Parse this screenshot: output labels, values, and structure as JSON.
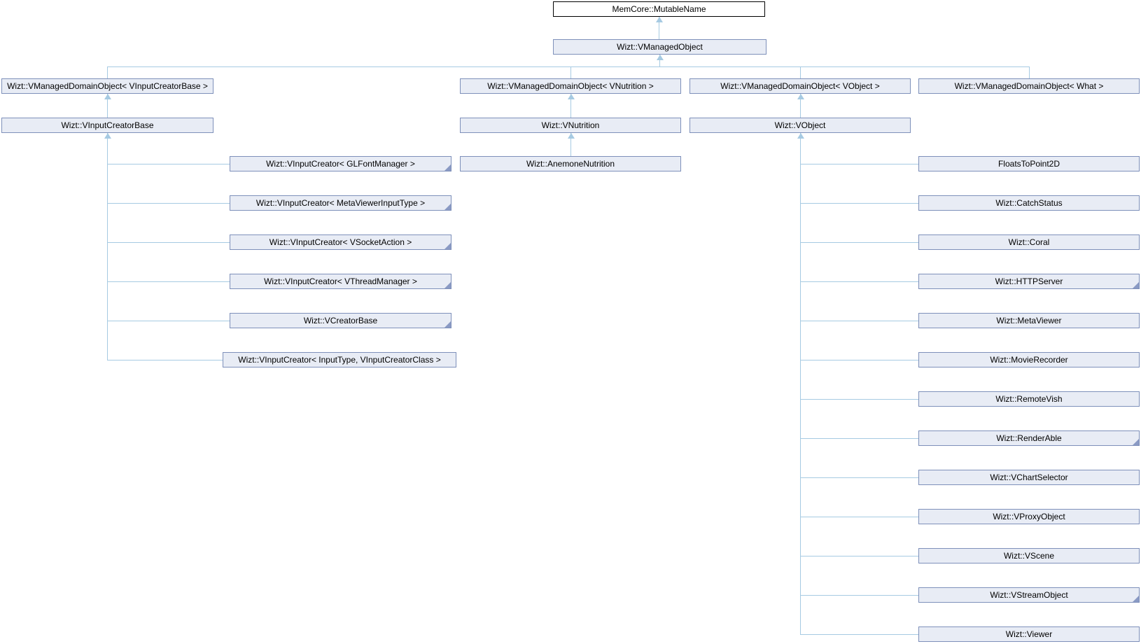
{
  "diagram": {
    "type": "class-inheritance-diagram",
    "colors": {
      "node_fill": "#E8ECF5",
      "node_border": "#7E90BA",
      "external_node_fill": "#FFFFFF",
      "external_node_border": "#000000",
      "connector": "#A6CAE2",
      "fold_marker": "#8A9AC4",
      "text": "#000000"
    },
    "fold_marker_meaning": "box has additional derived classes not shown",
    "nodes": [
      {
        "id": "memcore-mutablename",
        "label": "MemCore::MutableName",
        "variant": "external",
        "fold": false
      },
      {
        "id": "vmanagedobject",
        "label": "Wizt::VManagedObject",
        "variant": "class",
        "fold": false
      },
      {
        "id": "vmdo-vinputcreatorbase",
        "label": "Wizt::VManagedDomainObject< VInputCreatorBase >",
        "variant": "class",
        "fold": false
      },
      {
        "id": "vmdo-vnutrition",
        "label": "Wizt::VManagedDomainObject< VNutrition >",
        "variant": "class",
        "fold": false
      },
      {
        "id": "vmdo-vobject",
        "label": "Wizt::VManagedDomainObject< VObject >",
        "variant": "class",
        "fold": false
      },
      {
        "id": "vmdo-what",
        "label": "Wizt::VManagedDomainObject< What >",
        "variant": "class",
        "fold": false
      },
      {
        "id": "vinputcreatorbase",
        "label": "Wizt::VInputCreatorBase",
        "variant": "class",
        "fold": false
      },
      {
        "id": "vnutrition",
        "label": "Wizt::VNutrition",
        "variant": "class",
        "fold": false
      },
      {
        "id": "vobject",
        "label": "Wizt::VObject",
        "variant": "class",
        "fold": false
      },
      {
        "id": "vic-glfontmanager",
        "label": "Wizt::VInputCreator< GLFontManager >",
        "variant": "class",
        "fold": true
      },
      {
        "id": "vic-metaviewerinputtype",
        "label": "Wizt::VInputCreator< MetaViewerInputType >",
        "variant": "class",
        "fold": true
      },
      {
        "id": "vic-vsocketaction",
        "label": "Wizt::VInputCreator< VSocketAction >",
        "variant": "class",
        "fold": true
      },
      {
        "id": "vic-vthreadmanager",
        "label": "Wizt::VInputCreator< VThreadManager >",
        "variant": "class",
        "fold": true
      },
      {
        "id": "vcreatorbase",
        "label": "Wizt::VCreatorBase",
        "variant": "class",
        "fold": true
      },
      {
        "id": "vic-inputtype-vinputcreatorclass",
        "label": "Wizt::VInputCreator< InputType, VInputCreatorClass >",
        "variant": "class",
        "fold": false
      },
      {
        "id": "anemonenutrition",
        "label": "Wizt::AnemoneNutrition",
        "variant": "class",
        "fold": false
      },
      {
        "id": "floatstopoint2d",
        "label": "FloatsToPoint2D",
        "variant": "class",
        "fold": false
      },
      {
        "id": "catchstatus",
        "label": "Wizt::CatchStatus",
        "variant": "class",
        "fold": false
      },
      {
        "id": "coral",
        "label": "Wizt::Coral",
        "variant": "class",
        "fold": false
      },
      {
        "id": "httpserver",
        "label": "Wizt::HTTPServer",
        "variant": "class",
        "fold": true
      },
      {
        "id": "metaviewer",
        "label": "Wizt::MetaViewer",
        "variant": "class",
        "fold": false
      },
      {
        "id": "movierecorder",
        "label": "Wizt::MovieRecorder",
        "variant": "class",
        "fold": false
      },
      {
        "id": "remotevish",
        "label": "Wizt::RemoteVish",
        "variant": "class",
        "fold": false
      },
      {
        "id": "renderable",
        "label": "Wizt::RenderAble",
        "variant": "class",
        "fold": true
      },
      {
        "id": "vchartselector",
        "label": "Wizt::VChartSelector",
        "variant": "class",
        "fold": false
      },
      {
        "id": "vproxyobject",
        "label": "Wizt::VProxyObject",
        "variant": "class",
        "fold": false
      },
      {
        "id": "vscene",
        "label": "Wizt::VScene",
        "variant": "class",
        "fold": false
      },
      {
        "id": "vstreamobject",
        "label": "Wizt::VStreamObject",
        "variant": "class",
        "fold": true
      },
      {
        "id": "viewer",
        "label": "Wizt::Viewer",
        "variant": "class",
        "fold": false
      }
    ],
    "edges": [
      {
        "from": "vmanagedobject",
        "to": "memcore-mutablename"
      },
      {
        "from": "vmdo-vinputcreatorbase",
        "to": "vmanagedobject"
      },
      {
        "from": "vmdo-vnutrition",
        "to": "vmanagedobject"
      },
      {
        "from": "vmdo-vobject",
        "to": "vmanagedobject"
      },
      {
        "from": "vmdo-what",
        "to": "vmanagedobject"
      },
      {
        "from": "vinputcreatorbase",
        "to": "vmdo-vinputcreatorbase"
      },
      {
        "from": "vnutrition",
        "to": "vmdo-vnutrition"
      },
      {
        "from": "vobject",
        "to": "vmdo-vobject"
      },
      {
        "from": "vic-glfontmanager",
        "to": "vinputcreatorbase"
      },
      {
        "from": "vic-metaviewerinputtype",
        "to": "vinputcreatorbase"
      },
      {
        "from": "vic-vsocketaction",
        "to": "vinputcreatorbase"
      },
      {
        "from": "vic-vthreadmanager",
        "to": "vinputcreatorbase"
      },
      {
        "from": "vcreatorbase",
        "to": "vinputcreatorbase"
      },
      {
        "from": "vic-inputtype-vinputcreatorclass",
        "to": "vinputcreatorbase"
      },
      {
        "from": "anemonenutrition",
        "to": "vnutrition"
      },
      {
        "from": "floatstopoint2d",
        "to": "vobject"
      },
      {
        "from": "catchstatus",
        "to": "vobject"
      },
      {
        "from": "coral",
        "to": "vobject"
      },
      {
        "from": "httpserver",
        "to": "vobject"
      },
      {
        "from": "metaviewer",
        "to": "vobject"
      },
      {
        "from": "movierecorder",
        "to": "vobject"
      },
      {
        "from": "remotevish",
        "to": "vobject"
      },
      {
        "from": "renderable",
        "to": "vobject"
      },
      {
        "from": "vchartselector",
        "to": "vobject"
      },
      {
        "from": "vproxyobject",
        "to": "vobject"
      },
      {
        "from": "vscene",
        "to": "vobject"
      },
      {
        "from": "vstreamobject",
        "to": "vobject"
      },
      {
        "from": "viewer",
        "to": "vobject"
      }
    ]
  }
}
